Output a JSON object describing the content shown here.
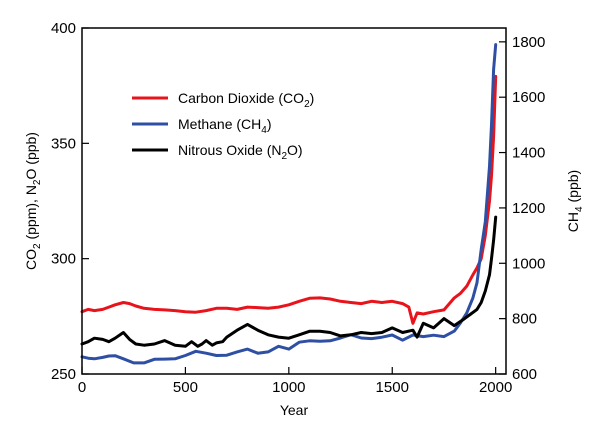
{
  "chart_data": {
    "type": "line",
    "xlabel": "Year",
    "ylabel_left": {
      "main": "CO",
      "sub1": "2",
      "mid": " (ppm), N",
      "sub2": "2",
      "end": "O (ppb)"
    },
    "ylabel_right": {
      "main": "CH",
      "sub": "4",
      "end": " (ppb)"
    },
    "xlim": [
      0,
      2050
    ],
    "ylim_left": [
      250,
      400
    ],
    "ylim_right": [
      600,
      1850
    ],
    "xticks": [
      0,
      500,
      1000,
      1500,
      2000
    ],
    "yticks_left": [
      250,
      300,
      350,
      400
    ],
    "yticks_right": [
      600,
      800,
      1000,
      1200,
      1400,
      1600,
      1800
    ],
    "grid": false,
    "legend_position": "upper-left",
    "series": [
      {
        "name": {
          "main": "Carbon Dioxide (CO",
          "sub": "2",
          "end": ")"
        },
        "color": "#e8141c",
        "axis": "left",
        "x": [
          0,
          30,
          60,
          100,
          130,
          160,
          200,
          230,
          260,
          300,
          350,
          400,
          450,
          500,
          550,
          600,
          650,
          700,
          750,
          800,
          850,
          900,
          950,
          1000,
          1050,
          1100,
          1150,
          1200,
          1250,
          1300,
          1350,
          1400,
          1450,
          1500,
          1550,
          1580,
          1600,
          1620,
          1650,
          1700,
          1750,
          1800,
          1830,
          1860,
          1890,
          1910,
          1930,
          1950,
          1970,
          1980,
          1990,
          2000
        ],
        "values": [
          277,
          278,
          277.5,
          278,
          279,
          280,
          281,
          280.5,
          279.5,
          278.5,
          278,
          277.8,
          277.5,
          277,
          276.8,
          277.5,
          278.5,
          278.5,
          278,
          279,
          278.8,
          278.5,
          279,
          280,
          281.5,
          282.8,
          283,
          282.5,
          281.5,
          281,
          280.5,
          281.5,
          281,
          281.5,
          280.5,
          279,
          272,
          276.5,
          276,
          277,
          277.8,
          283,
          285,
          288,
          293,
          296,
          300,
          310,
          325,
          336,
          353,
          379
        ]
      },
      {
        "name": {
          "main": "Methane (CH",
          "sub": "4",
          "end": ")"
        },
        "color": "#2e4fa3",
        "axis": "right",
        "x": [
          0,
          30,
          60,
          100,
          130,
          160,
          200,
          250,
          300,
          350,
          400,
          450,
          500,
          550,
          600,
          650,
          700,
          750,
          800,
          850,
          900,
          950,
          1000,
          1050,
          1100,
          1150,
          1200,
          1250,
          1300,
          1350,
          1400,
          1450,
          1500,
          1550,
          1600,
          1650,
          1700,
          1750,
          1800,
          1830,
          1860,
          1890,
          1910,
          1930,
          1950,
          1970,
          1980,
          1990,
          2000
        ],
        "values": [
          662,
          657,
          655,
          660,
          665,
          666,
          655,
          640,
          640,
          653,
          654,
          655,
          667,
          682,
          675,
          667,
          668,
          680,
          690,
          675,
          680,
          700,
          690,
          715,
          720,
          718,
          720,
          730,
          742,
          730,
          728,
          733,
          741,
          722,
          741,
          735,
          740,
          735,
          755,
          785,
          820,
          875,
          930,
          1050,
          1150,
          1350,
          1500,
          1700,
          1790
        ]
      },
      {
        "name": {
          "main": "Nitrous Oxide (N",
          "sub": "2",
          "end": "O)"
        },
        "color": "#000000",
        "axis": "left",
        "x": [
          0,
          30,
          60,
          100,
          130,
          160,
          200,
          230,
          260,
          300,
          350,
          400,
          450,
          500,
          530,
          560,
          580,
          600,
          630,
          650,
          680,
          700,
          750,
          800,
          850,
          900,
          950,
          1000,
          1050,
          1100,
          1150,
          1200,
          1250,
          1300,
          1350,
          1400,
          1450,
          1500,
          1550,
          1600,
          1620,
          1650,
          1700,
          1750,
          1800,
          1850,
          1880,
          1910,
          1930,
          1950,
          1970,
          1980,
          1990,
          2000
        ],
        "values": [
          263,
          264,
          265.5,
          265,
          264,
          265.5,
          268,
          265,
          263,
          262.5,
          263,
          264.5,
          262.5,
          262,
          264,
          262,
          263,
          264.5,
          262.5,
          263.5,
          264,
          266,
          269,
          271.5,
          269,
          267,
          266,
          265.5,
          267,
          268.5,
          268.5,
          268,
          266.5,
          267,
          268,
          267.5,
          268,
          270,
          268,
          269,
          266,
          272,
          270,
          274,
          271,
          274,
          276,
          278,
          281,
          286,
          293,
          300,
          308,
          318
        ]
      }
    ]
  }
}
